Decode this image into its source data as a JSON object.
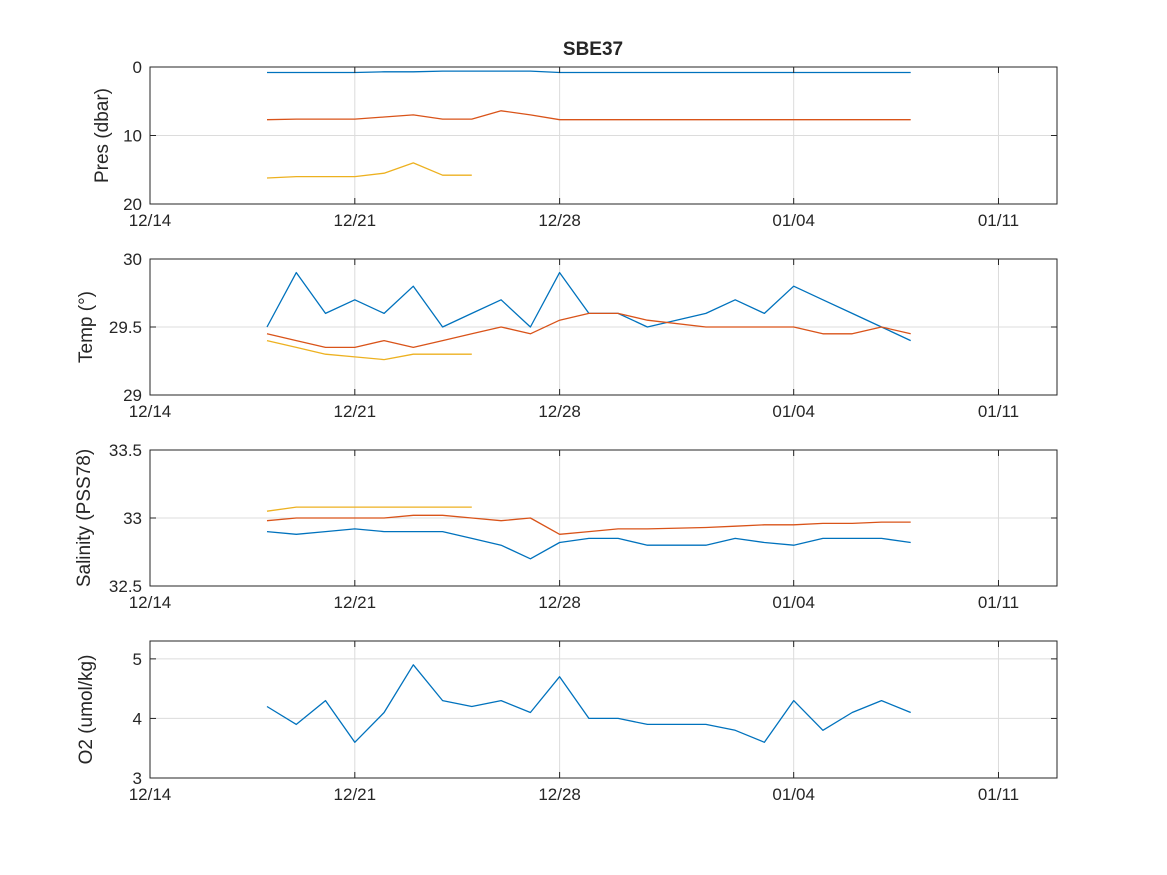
{
  "figure": {
    "title": "SBE37"
  },
  "colors": {
    "series1": "#0072BD",
    "series2": "#D95319",
    "series3": "#EDB120",
    "grid": "#dcdcdc",
    "axis": "#262626"
  },
  "chart_data": [
    {
      "type": "line",
      "ylabel": "Pres (dbar)",
      "xlabel": "",
      "x_axis": "date",
      "xlim": [
        "12/14",
        "01/13"
      ],
      "xticks": [
        "12/14",
        "12/21",
        "12/28",
        "01/04",
        "01/11"
      ],
      "ylim": [
        0,
        20
      ],
      "yticks": [
        "0",
        "10",
        "20"
      ],
      "y_reversed": true,
      "grid": true,
      "series": [
        {
          "color": "series1",
          "x": [
            "12/18",
            "12/19",
            "12/20",
            "12/21",
            "12/22",
            "12/23",
            "12/24",
            "12/25",
            "12/26",
            "12/27",
            "12/28",
            "12/30",
            "01/01",
            "01/03",
            "01/05",
            "01/07",
            "01/08"
          ],
          "y": [
            0.8,
            0.8,
            0.8,
            0.8,
            0.7,
            0.7,
            0.6,
            0.6,
            0.6,
            0.6,
            0.8,
            0.8,
            0.8,
            0.8,
            0.8,
            0.8,
            0.8
          ]
        },
        {
          "color": "series2",
          "x": [
            "12/18",
            "12/19",
            "12/20",
            "12/21",
            "12/22",
            "12/23",
            "12/24",
            "12/25",
            "12/26",
            "12/27",
            "12/28",
            "12/30",
            "01/01",
            "01/03",
            "01/05",
            "01/07",
            "01/08"
          ],
          "y": [
            7.7,
            7.6,
            7.6,
            7.6,
            7.3,
            7.0,
            7.6,
            7.6,
            6.4,
            7.0,
            7.7,
            7.7,
            7.7,
            7.7,
            7.7,
            7.7,
            7.7
          ]
        },
        {
          "color": "series3",
          "x": [
            "12/18",
            "12/19",
            "12/20",
            "12/21",
            "12/22",
            "12/23",
            "12/24",
            "12/25"
          ],
          "y": [
            16.2,
            16.0,
            16.0,
            16.0,
            15.5,
            14.0,
            15.8,
            15.8
          ]
        }
      ]
    },
    {
      "type": "line",
      "ylabel": "Temp (°)",
      "xlabel": "",
      "x_axis": "date",
      "xlim": [
        "12/14",
        "01/13"
      ],
      "xticks": [
        "12/14",
        "12/21",
        "12/28",
        "01/04",
        "01/11"
      ],
      "ylim": [
        29,
        30
      ],
      "yticks": [
        "29",
        "29.5",
        "30"
      ],
      "grid": true,
      "series": [
        {
          "color": "series1",
          "x": [
            "12/18",
            "12/19",
            "12/20",
            "12/21",
            "12/22",
            "12/23",
            "12/24",
            "12/25",
            "12/26",
            "12/27",
            "12/28",
            "12/29",
            "12/30",
            "12/31",
            "01/01",
            "01/02",
            "01/03",
            "01/04",
            "01/05",
            "01/06",
            "01/07",
            "01/08"
          ],
          "y": [
            29.5,
            29.9,
            29.6,
            29.7,
            29.6,
            29.8,
            29.5,
            29.6,
            29.7,
            29.5,
            29.9,
            29.6,
            29.6,
            29.5,
            29.6,
            29.7,
            29.6,
            29.8,
            29.7,
            29.6,
            29.5,
            29.4
          ]
        },
        {
          "color": "series2",
          "x": [
            "12/18",
            "12/19",
            "12/20",
            "12/21",
            "12/22",
            "12/23",
            "12/24",
            "12/25",
            "12/26",
            "12/27",
            "12/28",
            "12/29",
            "12/30",
            "12/31",
            "01/01",
            "01/02",
            "01/03",
            "01/04",
            "01/05",
            "01/06",
            "01/07",
            "01/08"
          ],
          "y": [
            29.45,
            29.4,
            29.35,
            29.35,
            29.4,
            29.35,
            29.4,
            29.45,
            29.5,
            29.45,
            29.55,
            29.6,
            29.6,
            29.55,
            29.5,
            29.5,
            29.5,
            29.5,
            29.45,
            29.45,
            29.5,
            29.45
          ]
        },
        {
          "color": "series3",
          "x": [
            "12/18",
            "12/19",
            "12/20",
            "12/21",
            "12/22",
            "12/23",
            "12/24",
            "12/25"
          ],
          "y": [
            29.4,
            29.35,
            29.3,
            29.28,
            29.26,
            29.3,
            29.3,
            29.3
          ]
        }
      ]
    },
    {
      "type": "line",
      "ylabel": "Salinity (PSS78)",
      "xlabel": "",
      "x_axis": "date",
      "xlim": [
        "12/14",
        "01/13"
      ],
      "xticks": [
        "12/14",
        "12/21",
        "12/28",
        "01/04",
        "01/11"
      ],
      "ylim": [
        32.5,
        33.5
      ],
      "yticks": [
        "32.5",
        "33",
        "33.5"
      ],
      "grid": true,
      "series": [
        {
          "color": "series1",
          "x": [
            "12/18",
            "12/19",
            "12/20",
            "12/21",
            "12/22",
            "12/23",
            "12/24",
            "12/25",
            "12/26",
            "12/27",
            "12/28",
            "12/29",
            "12/30",
            "12/31",
            "01/01",
            "01/02",
            "01/03",
            "01/04",
            "01/05",
            "01/06",
            "01/07",
            "01/08"
          ],
          "y": [
            32.9,
            32.88,
            32.9,
            32.92,
            32.9,
            32.9,
            32.9,
            32.85,
            32.8,
            32.7,
            32.82,
            32.85,
            32.85,
            32.8,
            32.8,
            32.85,
            32.82,
            32.8,
            32.85,
            32.85,
            32.85,
            32.82
          ]
        },
        {
          "color": "series2",
          "x": [
            "12/18",
            "12/19",
            "12/20",
            "12/21",
            "12/22",
            "12/23",
            "12/24",
            "12/25",
            "12/26",
            "12/27",
            "12/28",
            "12/29",
            "12/30",
            "12/31",
            "01/01",
            "01/02",
            "01/03",
            "01/04",
            "01/05",
            "01/06",
            "01/07",
            "01/08"
          ],
          "y": [
            32.98,
            33.0,
            33.0,
            33.0,
            33.0,
            33.02,
            33.02,
            33.0,
            32.98,
            33.0,
            32.88,
            32.9,
            32.92,
            32.92,
            32.93,
            32.94,
            32.95,
            32.95,
            32.96,
            32.96,
            32.97,
            32.97
          ]
        },
        {
          "color": "series3",
          "x": [
            "12/18",
            "12/19",
            "12/20",
            "12/21",
            "12/22",
            "12/23",
            "12/24",
            "12/25"
          ],
          "y": [
            33.05,
            33.08,
            33.08,
            33.08,
            33.08,
            33.08,
            33.08,
            33.08
          ]
        }
      ]
    },
    {
      "type": "line",
      "ylabel": "O2 (umol/kg)",
      "xlabel": "",
      "x_axis": "date",
      "xlim": [
        "12/14",
        "01/13"
      ],
      "xticks": [
        "12/14",
        "12/21",
        "12/28",
        "01/04",
        "01/11"
      ],
      "ylim": [
        3,
        5.3
      ],
      "yticks": [
        "3",
        "4",
        "5"
      ],
      "grid": true,
      "series": [
        {
          "color": "series1",
          "x": [
            "12/18",
            "12/19",
            "12/20",
            "12/21",
            "12/22",
            "12/23",
            "12/24",
            "12/25",
            "12/26",
            "12/27",
            "12/28",
            "12/29",
            "12/30",
            "12/31",
            "01/01",
            "01/02",
            "01/03",
            "01/04",
            "01/05",
            "01/06",
            "01/07",
            "01/08"
          ],
          "y": [
            4.2,
            3.9,
            4.3,
            3.6,
            4.1,
            4.9,
            4.3,
            4.2,
            4.3,
            4.1,
            4.7,
            4.0,
            4.0,
            3.9,
            3.9,
            3.8,
            3.6,
            4.3,
            3.8,
            4.1,
            4.3,
            4.1
          ]
        }
      ]
    }
  ]
}
